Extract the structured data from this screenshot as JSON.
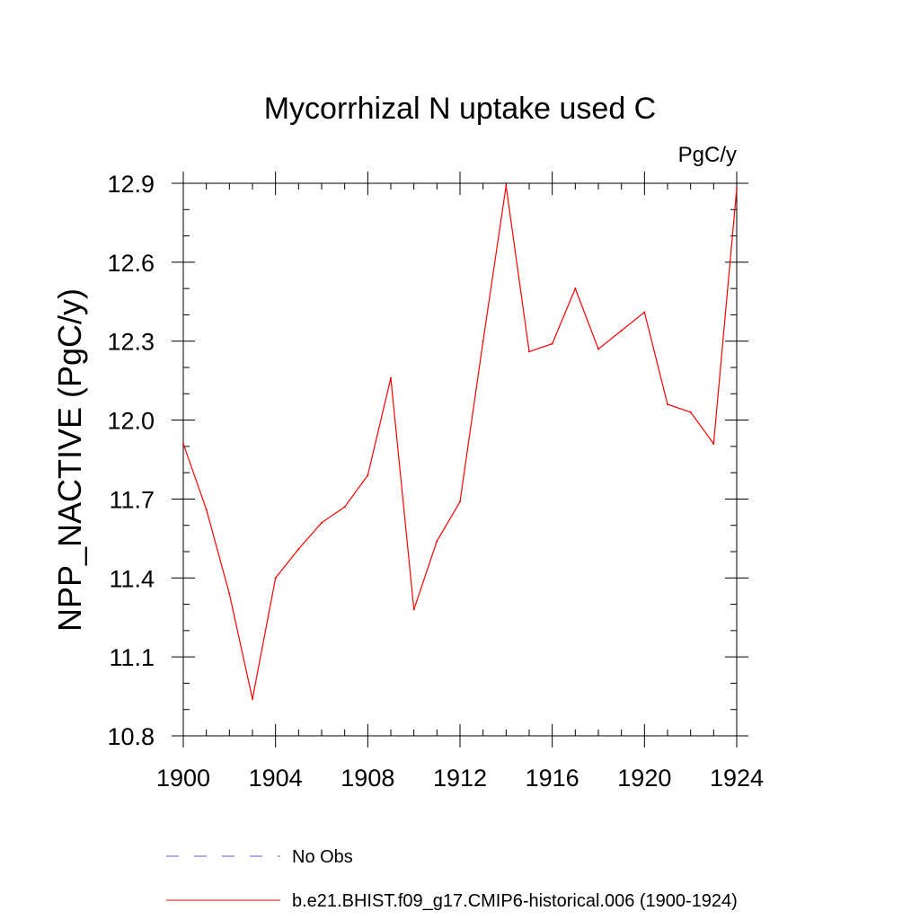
{
  "chart_data": {
    "type": "line",
    "title": "Mycorrhizal N uptake used C",
    "units_label": "PgC/y",
    "xlabel": "",
    "ylabel": "NPP_NACTIVE  (PgC/y)",
    "xlim": [
      1900,
      1924
    ],
    "ylim": [
      10.8,
      12.9
    ],
    "x_ticks": [
      1900,
      1904,
      1908,
      1912,
      1916,
      1920,
      1924
    ],
    "x_tick_labels": [
      "1900",
      "1904",
      "1908",
      "1912",
      "1916",
      "1920",
      "1924"
    ],
    "y_ticks": [
      10.8,
      11.1,
      11.4,
      11.7,
      12.0,
      12.3,
      12.6,
      12.9
    ],
    "y_tick_labels": [
      "10.8",
      "11.1",
      "11.4",
      "11.7",
      "12.0",
      "12.3",
      "12.6",
      "12.9"
    ],
    "grid": false,
    "series": [
      {
        "name": "b.e21.BHIST.f09_g17.CMIP6-historical.006 (1900-1924)",
        "color": "#ff0000",
        "dash": "solid",
        "x": [
          1900,
          1901,
          1902,
          1903,
          1904,
          1905,
          1906,
          1907,
          1908,
          1909,
          1910,
          1911,
          1912,
          1913,
          1914,
          1915,
          1916,
          1917,
          1918,
          1919,
          1920,
          1921,
          1922,
          1923,
          1924
        ],
        "y": [
          11.91,
          11.66,
          11.34,
          10.94,
          11.4,
          11.51,
          11.61,
          11.67,
          11.79,
          12.16,
          11.28,
          11.54,
          11.69,
          12.3,
          12.89,
          12.26,
          12.29,
          12.5,
          12.27,
          12.34,
          12.41,
          12.06,
          12.03,
          11.91,
          12.88
        ]
      }
    ],
    "legend": {
      "placement": "bottom",
      "entries": [
        {
          "label": "No Obs",
          "color": "#6a5acd",
          "dash": "dashed"
        },
        {
          "label": "b.e21.BHIST.f09_g17.CMIP6-historical.006 (1900-1924)",
          "color": "#ff0000",
          "dash": "solid"
        }
      ]
    }
  }
}
